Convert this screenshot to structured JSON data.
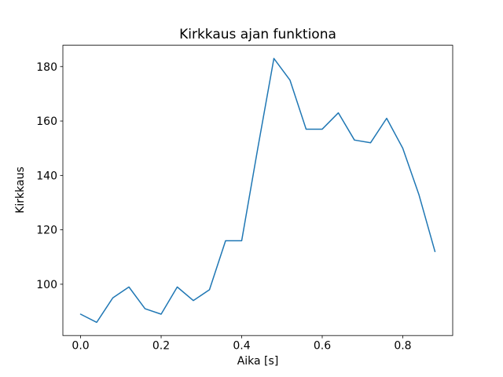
{
  "chart_data": {
    "type": "line",
    "title": "Kirkkaus ajan funktiona",
    "xlabel": "Aika [s]",
    "ylabel": "Kirkkaus",
    "x": [
      0.0,
      0.04,
      0.08,
      0.12,
      0.16,
      0.2,
      0.24,
      0.28,
      0.32,
      0.36,
      0.4,
      0.44,
      0.48,
      0.52,
      0.56,
      0.6,
      0.64,
      0.68,
      0.72,
      0.76,
      0.8,
      0.84,
      0.88
    ],
    "y": [
      89,
      86,
      95,
      99,
      91,
      89,
      99,
      94,
      98,
      116,
      116,
      150,
      183,
      175,
      157,
      157,
      163,
      153,
      152,
      161,
      150,
      133,
      112
    ],
    "xlim": [
      -0.044,
      0.924
    ],
    "ylim": [
      81.15,
      187.85
    ],
    "xticks": {
      "values": [
        0.0,
        0.2,
        0.4,
        0.6,
        0.8
      ],
      "labels": [
        "0.0",
        "0.2",
        "0.4",
        "0.6",
        "0.8"
      ]
    },
    "yticks": {
      "values": [
        100,
        120,
        140,
        160,
        180
      ],
      "labels": [
        "100",
        "120",
        "140",
        "160",
        "180"
      ]
    },
    "line_color": "#1f77b4",
    "axis_color": "#000000",
    "background_color": "#ffffff",
    "grid": false,
    "legend_position": "none"
  }
}
